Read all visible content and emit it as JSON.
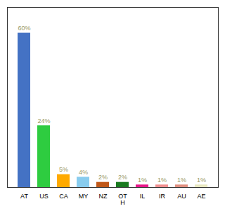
{
  "chart_data": {
    "type": "bar",
    "categories": [
      "AT",
      "US",
      "CA",
      "MY",
      "NZ",
      "OT\nH",
      "IL",
      "IR",
      "AU",
      "AE"
    ],
    "values": [
      60,
      24,
      5,
      4,
      2,
      2,
      1,
      1,
      1,
      1
    ],
    "value_labels": [
      "60%",
      "24%",
      "5%",
      "4%",
      "2%",
      "2%",
      "1%",
      "1%",
      "1%",
      "1%"
    ],
    "colors": [
      "#4472c4",
      "#2ecc40",
      "#ffaa00",
      "#88ccee",
      "#c05818",
      "#1a7a20",
      "#e8188a",
      "#f09090",
      "#e09080",
      "#e8e8c0"
    ],
    "ylim": [
      0,
      70
    ],
    "yticks": [],
    "grid": false,
    "data_labels": true,
    "tick_labels": "x"
  }
}
